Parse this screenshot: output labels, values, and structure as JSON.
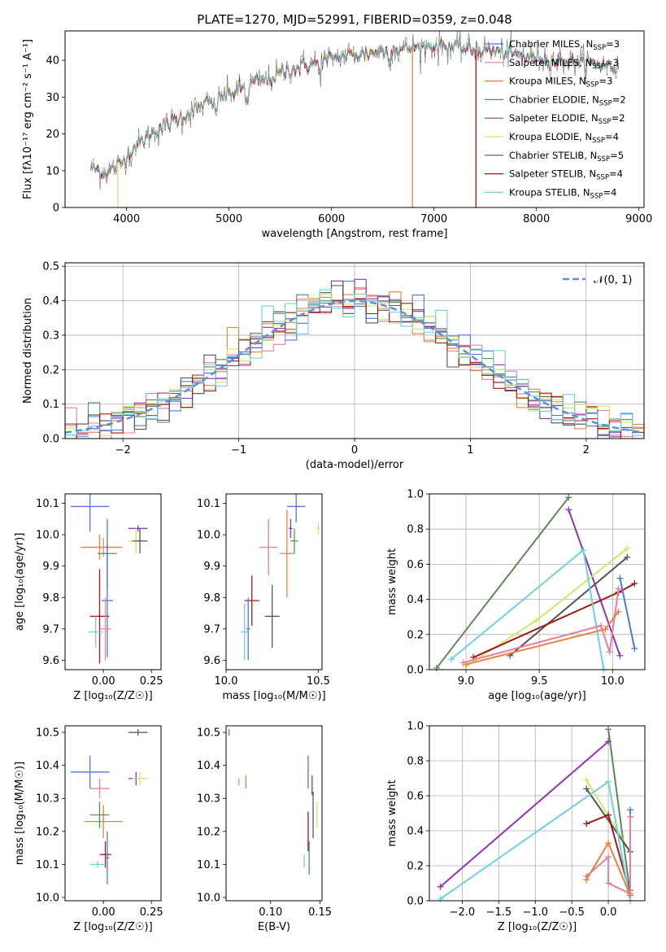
{
  "figure_title": "PLATE=1270, MJD=52991, FIBERID=0359, z=0.048",
  "chart_data": [
    {
      "id": "spectrum",
      "type": "line",
      "xlabel": "wavelength [Angstrom, rest frame]",
      "ylabel": "Flux [fλ10⁻¹⁷ erg cm⁻² s⁻¹ A⁻¹]",
      "xlim": [
        3400,
        9050
      ],
      "ylim": [
        0,
        48
      ],
      "xticks": [
        4000,
        5000,
        6000,
        7000,
        8000,
        9000
      ],
      "yticks": [
        0,
        10,
        20,
        30,
        40
      ],
      "continuum": [
        [
          3650,
          11
        ],
        [
          3800,
          9.5
        ],
        [
          3950,
          12
        ],
        [
          4000,
          14
        ],
        [
          4100,
          17
        ],
        [
          4200,
          19
        ],
        [
          4300,
          21
        ],
        [
          4400,
          22.5
        ],
        [
          4500,
          24
        ],
        [
          4700,
          27
        ],
        [
          4900,
          30
        ],
        [
          5000,
          31
        ],
        [
          5100,
          32
        ],
        [
          5200,
          33.5
        ],
        [
          5400,
          35
        ],
        [
          5600,
          37.5
        ],
        [
          5800,
          39
        ],
        [
          6000,
          40.5
        ],
        [
          6200,
          41.5
        ],
        [
          6400,
          42
        ],
        [
          6600,
          43
        ],
        [
          6800,
          43.5
        ],
        [
          7000,
          44
        ],
        [
          7200,
          43.5
        ],
        [
          7400,
          43
        ],
        [
          7600,
          42.5
        ],
        [
          7800,
          41.5
        ],
        [
          8000,
          40.8
        ],
        [
          8200,
          40
        ],
        [
          8400,
          39.5
        ],
        [
          8600,
          39
        ],
        [
          8800,
          38
        ]
      ],
      "legend": [
        "Chabrier MILES, N_SSP=3",
        "Salpeter MILES, N_SSP=3",
        "Kroupa MILES, N_SSP=3",
        "Chabrier ELODIE, N_SSP=2",
        "Salpeter ELODIE, N_SSP=2",
        "Kroupa ELODIE, N_SSP=4",
        "Chabrier STELIB, N_SSP=5",
        "Salpeter STELIB, N_SSP=4",
        "Kroupa STELIB, N_SSP=4"
      ],
      "legend_entries": [
        {
          "model": "Chabrier MILES",
          "n": "3"
        },
        {
          "model": "Salpeter MILES",
          "n": "3"
        },
        {
          "model": "Kroupa MILES",
          "n": "3"
        },
        {
          "model": "Chabrier ELODIE",
          "n": "2"
        },
        {
          "model": "Salpeter ELODIE",
          "n": "2"
        },
        {
          "model": "Kroupa ELODIE",
          "n": "4"
        },
        {
          "model": "Chabrier STELIB",
          "n": "5"
        },
        {
          "model": "Salpeter STELIB",
          "n": "4"
        },
        {
          "model": "Kroupa STELIB",
          "n": "4"
        }
      ],
      "legend_placement": "upper right"
    },
    {
      "id": "residuals",
      "type": "histogram",
      "xlabel": "(data-model)/error",
      "ylabel": "Normed distribution",
      "xlim": [
        -2.5,
        2.5
      ],
      "ylim": [
        0,
        0.51
      ],
      "xticks": [
        -2,
        -1,
        0,
        1,
        2
      ],
      "yticks": [
        0.0,
        0.1,
        0.2,
        0.3,
        0.4,
        0.5
      ],
      "grid": true,
      "reference_curve": "𝒩(0, 1)",
      "legend_placement": "upper right"
    },
    {
      "id": "age_vs_Z",
      "type": "scatter",
      "xlabel": "Z [log₁₀(Z/Z☉)]",
      "ylabel": "age  [log₁₀(age/yr)]",
      "xlim": [
        -0.2,
        0.3
      ],
      "ylim": [
        9.57,
        10.13
      ],
      "xticks": [
        0.0,
        0.25
      ],
      "yticks": [
        9.6,
        9.7,
        9.8,
        9.9,
        10.0,
        10.1
      ],
      "points": [
        {
          "x": -0.07,
          "y": 10.09,
          "xerr": 0.1,
          "yerr": 0.08
        },
        {
          "x": 0.0,
          "y": 9.96,
          "xerr": 0.1,
          "yerr": 0.03
        },
        {
          "x": -0.02,
          "y": 9.96,
          "xerr": 0.1,
          "yerr": 0.04
        },
        {
          "x": 0.02,
          "y": 9.94,
          "xerr": 0.05,
          "yerr": 0.11
        },
        {
          "x": 0.18,
          "y": 10.02,
          "xerr": 0.05,
          "yerr": 0.01
        },
        {
          "x": 0.17,
          "y": 9.98,
          "xerr": 0.04,
          "yerr": 0.04
        },
        {
          "x": 0.19,
          "y": 9.98,
          "xerr": 0.04,
          "yerr": 0.04
        },
        {
          "x": -0.02,
          "y": 9.74,
          "xerr": 0.05,
          "yerr": 0.15
        },
        {
          "x": -0.04,
          "y": 9.69,
          "xerr": 0.04,
          "yerr": 0.05
        },
        {
          "x": 0.02,
          "y": 9.79,
          "xerr": 0.03,
          "yerr": 0.18
        },
        {
          "x": 0.01,
          "y": 9.7,
          "xerr": 0.03,
          "yerr": 0.1
        }
      ]
    },
    {
      "id": "age_vs_mass",
      "type": "scatter",
      "xlabel": "mass [log₁₀(M/M☉)]",
      "xlim": [
        10.0,
        10.52
      ],
      "ylim": [
        9.57,
        10.13
      ],
      "xticks": [
        10.0,
        10.5
      ],
      "yticks": [
        9.6,
        9.7,
        9.8,
        9.9,
        10.0,
        10.1
      ],
      "points": [
        {
          "x": 10.38,
          "y": 10.09,
          "xerr": 0.05,
          "yerr": 0.05
        },
        {
          "x": 10.23,
          "y": 9.96,
          "xerr": 0.05,
          "yerr": 0.09
        },
        {
          "x": 10.33,
          "y": 9.94,
          "xerr": 0.04,
          "yerr": 0.14
        },
        {
          "x": 10.37,
          "y": 9.98,
          "xerr": 0.02,
          "yerr": 0.04
        },
        {
          "x": 10.35,
          "y": 10.02,
          "xerr": 0.01,
          "yerr": 0.03
        },
        {
          "x": 10.5,
          "y": 10.02,
          "xerr": 0.01,
          "yerr": 0.02
        },
        {
          "x": 10.25,
          "y": 9.74,
          "xerr": 0.04,
          "yerr": 0.1
        },
        {
          "x": 10.14,
          "y": 9.79,
          "xerr": 0.04,
          "yerr": 0.08
        },
        {
          "x": 10.1,
          "y": 9.69,
          "xerr": 0.02,
          "yerr": 0.09
        },
        {
          "x": 10.12,
          "y": 9.7,
          "xerr": 0.01,
          "yerr": 0.1
        }
      ]
    },
    {
      "id": "weight_vs_age",
      "type": "line",
      "xlabel": "age  [log₁₀(age/yr)]",
      "ylabel": "mass weight",
      "xlim": [
        8.75,
        10.22
      ],
      "ylim": [
        0,
        1.0
      ],
      "xticks": [
        9.0,
        9.5,
        10.0
      ],
      "yticks": [
        0.0,
        0.2,
        0.4,
        0.6,
        0.8,
        1.0
      ],
      "grid": true,
      "series": [
        {
          "x": [
            8.8,
            9.7
          ],
          "y": [
            0.01,
            0.98
          ]
        },
        {
          "x": [
            9.7,
            10.05
          ],
          "y": [
            0.91,
            0.08
          ]
        },
        {
          "x": [
            9.0,
            9.48,
            10.1
          ],
          "y": [
            0.02,
            0.28,
            0.69
          ]
        },
        {
          "x": [
            9.3,
            10.1
          ],
          "y": [
            0.08,
            0.64
          ]
        },
        {
          "x": [
            9.05,
            10.04,
            10.15
          ],
          "y": [
            0.07,
            0.44,
            0.49
          ]
        },
        {
          "x": [
            8.9,
            9.8,
            9.94
          ],
          "y": [
            0.06,
            0.68,
            0.0
          ]
        },
        {
          "x": [
            10.05,
            10.15
          ],
          "y": [
            0.52,
            0.12
          ]
        },
        {
          "x": [
            8.98,
            9.92,
            9.98,
            10.04
          ],
          "y": [
            0.04,
            0.25,
            0.1,
            0.46
          ]
        },
        {
          "x": [
            9.0,
            9.95,
            10.04
          ],
          "y": [
            0.03,
            0.23,
            0.33
          ]
        }
      ]
    },
    {
      "id": "mass_vs_Z",
      "type": "scatter",
      "xlabel": "Z [log₁₀(Z/Z☉)]",
      "ylabel": "mass [log₁₀(M/M☉)]",
      "xlim": [
        -0.2,
        0.3
      ],
      "ylim": [
        9.99,
        10.52
      ],
      "xticks": [
        0.0,
        0.25
      ],
      "yticks": [
        10.0,
        10.1,
        10.2,
        10.3,
        10.4,
        10.5
      ],
      "points": [
        {
          "x": -0.07,
          "y": 10.38,
          "xerr": 0.1,
          "yerr": 0.05
        },
        {
          "x": -0.02,
          "y": 10.33,
          "xerr": 0.05,
          "yerr": 0.03
        },
        {
          "x": 0.0,
          "y": 10.23,
          "xerr": 0.1,
          "yerr": 0.05
        },
        {
          "x": -0.02,
          "y": 10.25,
          "xerr": 0.05,
          "yerr": 0.04
        },
        {
          "x": 0.17,
          "y": 10.36,
          "xerr": 0.04,
          "yerr": 0.02
        },
        {
          "x": 0.19,
          "y": 10.36,
          "xerr": 0.04,
          "yerr": 0.02
        },
        {
          "x": 0.18,
          "y": 10.5,
          "xerr": 0.05,
          "yerr": 0.01
        },
        {
          "x": 0.01,
          "y": 10.13,
          "xerr": 0.03,
          "yerr": 0.04
        },
        {
          "x": -0.03,
          "y": 10.1,
          "xerr": 0.04,
          "yerr": 0.01
        },
        {
          "x": 0.02,
          "y": 10.12,
          "xerr": 0.01,
          "yerr": 0.08
        }
      ]
    },
    {
      "id": "mass_vs_ebv",
      "type": "scatter",
      "xlabel": "E(B-V)",
      "xlim": [
        0.055,
        0.152
      ],
      "ylim": [
        9.99,
        10.52
      ],
      "xticks": [
        0.1,
        0.15
      ],
      "yticks": [
        10.0,
        10.1,
        10.2,
        10.3,
        10.4,
        10.5
      ],
      "points": [
        {
          "x": 0.058,
          "y": 10.5,
          "yerr": 0.01
        },
        {
          "x": 0.068,
          "y": 10.35,
          "yerr": 0.01
        },
        {
          "x": 0.075,
          "y": 10.35,
          "yerr": 0.02
        },
        {
          "x": 0.138,
          "y": 10.38,
          "yerr": 0.05
        },
        {
          "x": 0.142,
          "y": 10.34,
          "yerr": 0.03
        },
        {
          "x": 0.147,
          "y": 10.25,
          "yerr": 0.04
        },
        {
          "x": 0.143,
          "y": 10.25,
          "yerr": 0.07
        },
        {
          "x": 0.138,
          "y": 10.2,
          "yerr": 0.06
        },
        {
          "x": 0.134,
          "y": 10.11,
          "yerr": 0.02
        },
        {
          "x": 0.139,
          "y": 10.12,
          "yerr": 0.05
        }
      ]
    },
    {
      "id": "weight_vs_Z",
      "type": "line",
      "xlabel": "Z [log₁₀(Z/Z☉)]",
      "ylabel": "mass weight",
      "xlim": [
        -2.45,
        0.5
      ],
      "ylim": [
        0,
        1.0
      ],
      "xticks": [
        -2.0,
        -1.5,
        -1.0,
        -0.5,
        0.0
      ],
      "yticks": [
        0.0,
        0.2,
        0.4,
        0.6,
        0.8,
        1.0
      ],
      "grid": true,
      "series": [
        {
          "x": [
            0.0,
            0.3
          ],
          "y": [
            0.98,
            0.04
          ]
        },
        {
          "x": [
            -2.3,
            0.0
          ],
          "y": [
            0.08,
            0.91
          ]
        },
        {
          "x": [
            -0.3,
            0.3
          ],
          "y": [
            0.69,
            0.28
          ]
        },
        {
          "x": [
            -0.3,
            0.3
          ],
          "y": [
            0.64,
            0.28
          ]
        },
        {
          "x": [
            -0.3,
            0.0,
            0.3
          ],
          "y": [
            0.44,
            0.49,
            0.04
          ]
        },
        {
          "x": [
            -2.3,
            0.0,
            0.3
          ],
          "y": [
            0.01,
            0.68,
            0.0
          ]
        },
        {
          "x": [
            0.3,
            0.3
          ],
          "y": [
            0.52,
            0.06
          ]
        },
        {
          "x": [
            -0.3,
            0.0,
            0.0,
            0.3,
            0.3
          ],
          "y": [
            0.14,
            0.25,
            0.1,
            0.04,
            0.48
          ]
        },
        {
          "x": [
            -0.3,
            0.0,
            0.3
          ],
          "y": [
            0.12,
            0.33,
            0.03
          ]
        }
      ]
    }
  ],
  "colors": [
    "#4e79d8",
    "#e87f9f",
    "#e8823c",
    "#5a8a5a",
    "#8e33b8",
    "#cfe86a",
    "#555555",
    "#a61818",
    "#6fd0e0"
  ]
}
